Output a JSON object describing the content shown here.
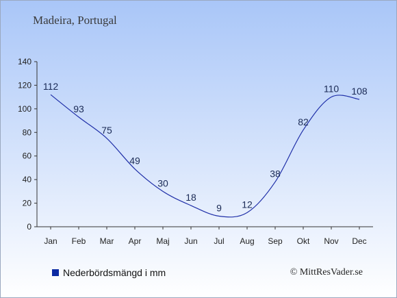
{
  "subtitle": "Madeira, Portugal",
  "legend": {
    "label": "Nederbördsmängd i mm",
    "color": "#0b2aa3"
  },
  "credit": "© MittResVader.se",
  "chart_data": {
    "type": "line",
    "categories": [
      "Jan",
      "Feb",
      "Mar",
      "Apr",
      "Maj",
      "Jun",
      "Jul",
      "Aug",
      "Sep",
      "Okt",
      "Nov",
      "Dec"
    ],
    "series": [
      {
        "name": "Nederbördsmängd i mm",
        "values": [
          112,
          93,
          75,
          49,
          30,
          18,
          9,
          12,
          38,
          82,
          110,
          108
        ],
        "color": "#1f2fa8"
      }
    ],
    "ylim": [
      0,
      140
    ],
    "yticks": [
      0,
      20,
      40,
      60,
      80,
      100,
      120,
      140
    ],
    "grid": false,
    "legend_position": "bottom-left"
  }
}
